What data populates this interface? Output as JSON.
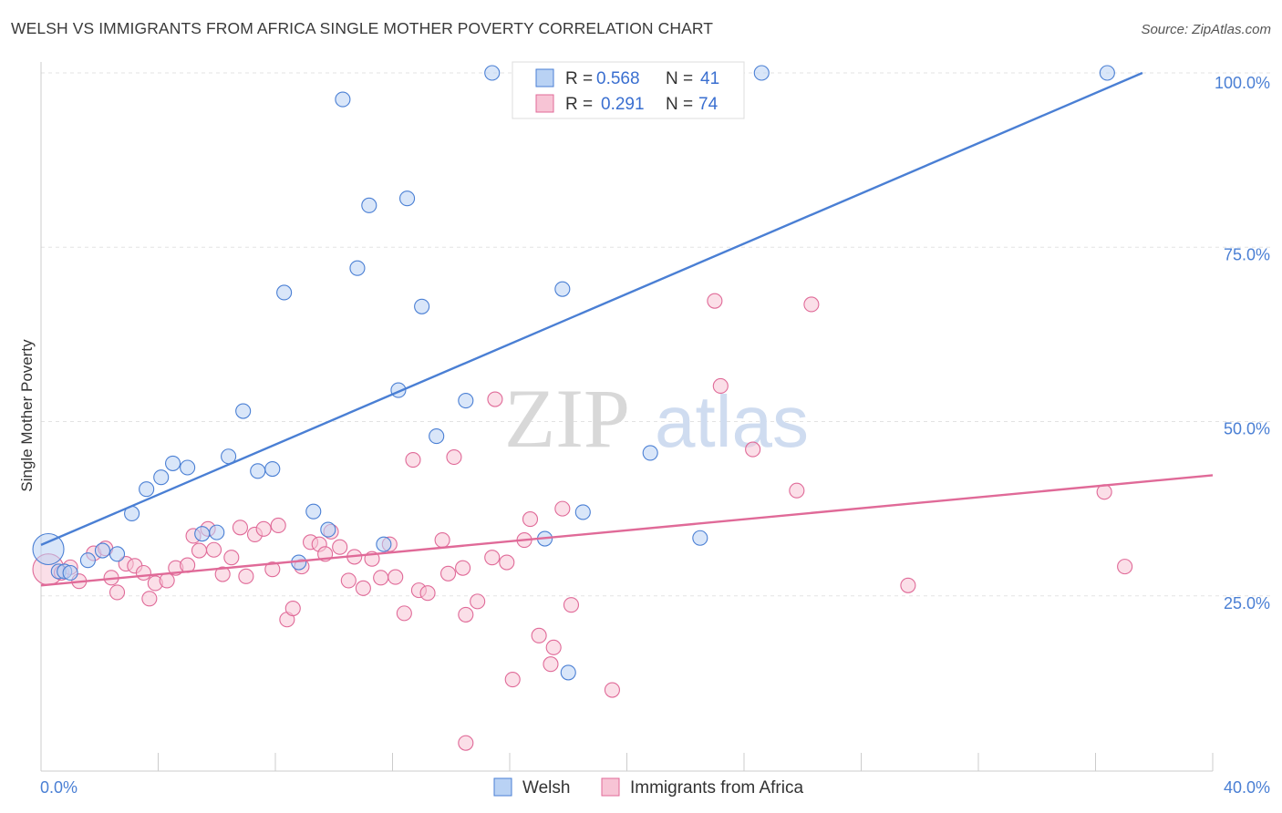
{
  "header": {
    "title": "WELSH VS IMMIGRANTS FROM AFRICA SINGLE MOTHER POVERTY CORRELATION CHART",
    "source": "Source: ZipAtlas.com"
  },
  "watermark": {
    "part1": "ZIP",
    "part2": "atlas"
  },
  "legend": {
    "welsh": {
      "r_label": "R =",
      "r_value": "0.568",
      "n_label": "N =",
      "n_value": "41"
    },
    "africa": {
      "r_label": "R =",
      "r_value": "0.291",
      "n_label": "N =",
      "n_value": "74"
    }
  },
  "bottom_legend": {
    "welsh": "Welsh",
    "africa": "Immigrants from Africa"
  },
  "chart_data": {
    "type": "scatter",
    "title": "WELSH VS IMMIGRANTS FROM AFRICA SINGLE MOTHER POVERTY CORRELATION CHART",
    "ylabel": "Single Mother Poverty",
    "xlim": [
      0,
      40
    ],
    "ylim": [
      0,
      100
    ],
    "x_tick_labels": [
      "0.0%",
      "40.0%"
    ],
    "y_ticks": [
      25,
      50,
      75,
      100
    ],
    "y_tick_labels": [
      "25.0%",
      "50.0%",
      "75.0%",
      "100.0%"
    ],
    "colors": {
      "welsh": "#4a7fd4",
      "africa": "#e06a98",
      "welsh_fill": "#b9d2f4",
      "africa_fill": "#f7c4d5"
    },
    "series": [
      {
        "name": "Welsh",
        "trend": {
          "x": [
            0,
            37.6
          ],
          "y": [
            32.3,
            100
          ]
        },
        "points": [
          {
            "x": 0.25,
            "y": 31.7,
            "big": true
          },
          {
            "x": 0.6,
            "y": 28.5
          },
          {
            "x": 0.8,
            "y": 28.5
          },
          {
            "x": 1.0,
            "y": 28.3
          },
          {
            "x": 1.6,
            "y": 30.1
          },
          {
            "x": 2.1,
            "y": 31.5
          },
          {
            "x": 2.6,
            "y": 31.0
          },
          {
            "x": 3.1,
            "y": 36.8
          },
          {
            "x": 3.6,
            "y": 40.3
          },
          {
            "x": 4.1,
            "y": 42.0
          },
          {
            "x": 4.5,
            "y": 44.0
          },
          {
            "x": 5.0,
            "y": 43.4
          },
          {
            "x": 5.5,
            "y": 33.9
          },
          {
            "x": 6.0,
            "y": 34.1
          },
          {
            "x": 6.4,
            "y": 45.0
          },
          {
            "x": 6.9,
            "y": 51.5
          },
          {
            "x": 7.4,
            "y": 42.9
          },
          {
            "x": 7.9,
            "y": 43.2
          },
          {
            "x": 8.3,
            "y": 68.5
          },
          {
            "x": 8.8,
            "y": 29.8
          },
          {
            "x": 9.3,
            "y": 37.1
          },
          {
            "x": 9.8,
            "y": 34.5
          },
          {
            "x": 10.3,
            "y": 96.2
          },
          {
            "x": 10.8,
            "y": 72.0
          },
          {
            "x": 11.2,
            "y": 81.0
          },
          {
            "x": 11.7,
            "y": 32.4
          },
          {
            "x": 12.2,
            "y": 54.5
          },
          {
            "x": 12.5,
            "y": 82.0
          },
          {
            "x": 13.0,
            "y": 66.5
          },
          {
            "x": 13.5,
            "y": 47.9
          },
          {
            "x": 14.5,
            "y": 53.0
          },
          {
            "x": 15.4,
            "y": 100
          },
          {
            "x": 17.2,
            "y": 33.2
          },
          {
            "x": 17.8,
            "y": 69.0
          },
          {
            "x": 18.0,
            "y": 14.0
          },
          {
            "x": 18.5,
            "y": 37.0
          },
          {
            "x": 20.7,
            "y": 100
          },
          {
            "x": 20.8,
            "y": 45.5
          },
          {
            "x": 22.5,
            "y": 33.3
          },
          {
            "x": 24.6,
            "y": 100
          },
          {
            "x": 36.4,
            "y": 100
          }
        ]
      },
      {
        "name": "Immigrants from Africa",
        "trend": {
          "x": [
            0,
            40
          ],
          "y": [
            26.5,
            42.3
          ]
        },
        "points": [
          {
            "x": 0.25,
            "y": 28.8,
            "big": true
          },
          {
            "x": 0.7,
            "y": 28.3
          },
          {
            "x": 1.0,
            "y": 29.1
          },
          {
            "x": 1.3,
            "y": 27.1
          },
          {
            "x": 1.8,
            "y": 31.1
          },
          {
            "x": 2.2,
            "y": 31.8
          },
          {
            "x": 2.4,
            "y": 27.6
          },
          {
            "x": 2.6,
            "y": 25.5
          },
          {
            "x": 2.9,
            "y": 29.6
          },
          {
            "x": 3.2,
            "y": 29.3
          },
          {
            "x": 3.5,
            "y": 28.3
          },
          {
            "x": 3.7,
            "y": 24.6
          },
          {
            "x": 3.9,
            "y": 26.8
          },
          {
            "x": 4.3,
            "y": 27.2
          },
          {
            "x": 4.6,
            "y": 29.0
          },
          {
            "x": 5.0,
            "y": 29.4
          },
          {
            "x": 5.2,
            "y": 33.6
          },
          {
            "x": 5.4,
            "y": 31.5
          },
          {
            "x": 5.7,
            "y": 34.6
          },
          {
            "x": 5.9,
            "y": 31.6
          },
          {
            "x": 6.2,
            "y": 28.1
          },
          {
            "x": 6.5,
            "y": 30.5
          },
          {
            "x": 6.8,
            "y": 34.8
          },
          {
            "x": 7.0,
            "y": 27.8
          },
          {
            "x": 7.3,
            "y": 33.8
          },
          {
            "x": 7.6,
            "y": 34.6
          },
          {
            "x": 7.9,
            "y": 28.8
          },
          {
            "x": 8.1,
            "y": 35.1
          },
          {
            "x": 8.4,
            "y": 21.6
          },
          {
            "x": 8.6,
            "y": 23.2
          },
          {
            "x": 8.9,
            "y": 29.2
          },
          {
            "x": 9.2,
            "y": 32.7
          },
          {
            "x": 9.5,
            "y": 32.4
          },
          {
            "x": 9.7,
            "y": 31.0
          },
          {
            "x": 9.9,
            "y": 34.2
          },
          {
            "x": 10.2,
            "y": 32.0
          },
          {
            "x": 10.5,
            "y": 27.2
          },
          {
            "x": 10.7,
            "y": 30.6
          },
          {
            "x": 11.0,
            "y": 26.1
          },
          {
            "x": 11.3,
            "y": 30.3
          },
          {
            "x": 11.6,
            "y": 27.6
          },
          {
            "x": 11.9,
            "y": 32.4
          },
          {
            "x": 12.1,
            "y": 27.7
          },
          {
            "x": 12.4,
            "y": 22.5
          },
          {
            "x": 12.7,
            "y": 44.5
          },
          {
            "x": 12.9,
            "y": 25.8
          },
          {
            "x": 13.2,
            "y": 25.4
          },
          {
            "x": 13.7,
            "y": 33.0
          },
          {
            "x": 13.9,
            "y": 28.2
          },
          {
            "x": 14.1,
            "y": 44.9
          },
          {
            "x": 14.5,
            "y": 22.3
          },
          {
            "x": 14.9,
            "y": 24.2
          },
          {
            "x": 15.4,
            "y": 30.5
          },
          {
            "x": 15.5,
            "y": 53.2
          },
          {
            "x": 15.9,
            "y": 29.8
          },
          {
            "x": 16.1,
            "y": 13.0
          },
          {
            "x": 16.5,
            "y": 33.0
          },
          {
            "x": 16.7,
            "y": 36.0
          },
          {
            "x": 17.0,
            "y": 19.3
          },
          {
            "x": 17.4,
            "y": 15.2
          },
          {
            "x": 17.5,
            "y": 17.6
          },
          {
            "x": 17.8,
            "y": 37.5
          },
          {
            "x": 18.1,
            "y": 23.7
          },
          {
            "x": 14.5,
            "y": 3.9
          },
          {
            "x": 19.5,
            "y": 11.5
          },
          {
            "x": 23.0,
            "y": 67.3
          },
          {
            "x": 23.2,
            "y": 55.1
          },
          {
            "x": 24.3,
            "y": 46.0
          },
          {
            "x": 25.8,
            "y": 40.1
          },
          {
            "x": 26.3,
            "y": 66.8
          },
          {
            "x": 29.6,
            "y": 26.5
          },
          {
            "x": 36.3,
            "y": 39.9
          },
          {
            "x": 37.0,
            "y": 29.2
          },
          {
            "x": 14.4,
            "y": 29.0
          }
        ]
      }
    ]
  }
}
